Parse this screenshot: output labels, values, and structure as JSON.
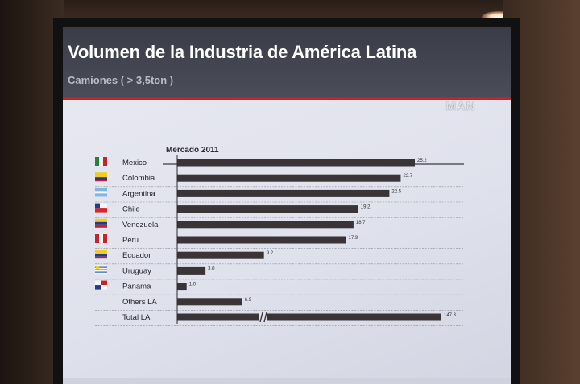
{
  "slide": {
    "title": "Volumen de la Industria de América Latina",
    "subtitle": "Camiones ( > 3,5ton )",
    "logo": "MAN"
  },
  "chart_data": {
    "type": "bar",
    "orientation": "horizontal",
    "title": "Mercado 2011",
    "categories": [
      "Mexico",
      "Colombia",
      "Argentina",
      "Chile",
      "Venezuela",
      "Peru",
      "Ecuador",
      "Uruguay",
      "Panama",
      "Others LA",
      "Total LA"
    ],
    "values": [
      25.2,
      23.7,
      22.5,
      19.2,
      18.7,
      17.9,
      9.2,
      3.0,
      1.0,
      6.9,
      147.3
    ],
    "value_labels": [
      "25.2",
      "23.7",
      "22.5",
      "19.2",
      "18.7",
      "17.9",
      "9.2",
      "3.0",
      "1.0",
      "6.9",
      "147.3"
    ],
    "axis_break_on": "Total LA",
    "xlim": [
      0,
      30
    ],
    "flags": [
      "mexico",
      "colombia",
      "argentina",
      "chile",
      "venezuela",
      "peru",
      "ecuador",
      "uruguay",
      "panama",
      "",
      ""
    ],
    "colors": {
      "bar": "#3b3437",
      "rule": "#8c8e99"
    }
  }
}
